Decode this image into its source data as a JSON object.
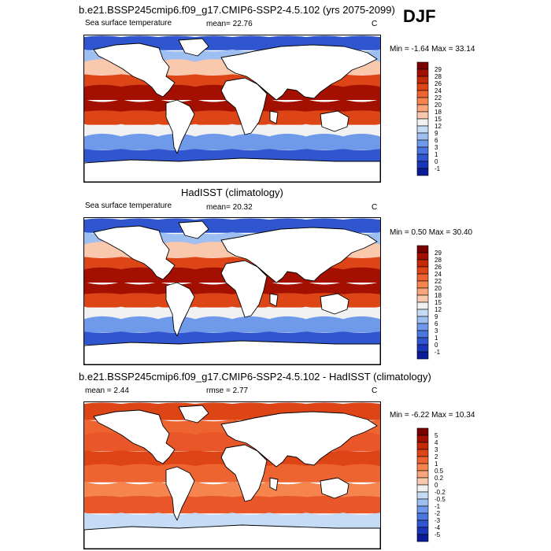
{
  "season": "DJF",
  "panels": [
    {
      "title": "b.e21.BSSP245cmip6.f09_g17.CMIP6-SSP2-4.5.102 (yrs 2075-2099)",
      "left_label": "Sea surface temperature",
      "stat_label": "mean=",
      "stat_value": "22.76",
      "unit": "C",
      "minmax": "Min =  -1.64 Max =  33.14",
      "colorbar_labels": [
        "29",
        "28",
        "26",
        "24",
        "22",
        "20",
        "18",
        "15",
        "12",
        "9",
        "6",
        "3",
        "1",
        "0",
        "-1"
      ],
      "colorbar_colors": [
        "#7a0000",
        "#a31000",
        "#c42a05",
        "#de4516",
        "#ee6430",
        "#f5844f",
        "#f8a57a",
        "#fac8ad",
        "#f1f1f1",
        "#c6dbf6",
        "#9dbff2",
        "#6e9ae9",
        "#4a76df",
        "#2f55cf",
        "#1a37b8",
        "#0a1c96"
      ]
    },
    {
      "title": "HadISST (climatology)",
      "left_label": "Sea surface temperature",
      "stat_label": "mean=",
      "stat_value": "20.32",
      "unit": "C",
      "minmax": "Min =   0.50 Max =  30.40",
      "colorbar_labels": [
        "29",
        "28",
        "26",
        "24",
        "22",
        "20",
        "18",
        "15",
        "12",
        "9",
        "6",
        "3",
        "1",
        "0",
        "-1"
      ],
      "colorbar_colors": [
        "#7a0000",
        "#a31000",
        "#c42a05",
        "#de4516",
        "#ee6430",
        "#f5844f",
        "#f8a57a",
        "#fac8ad",
        "#f1f1f1",
        "#c6dbf6",
        "#9dbff2",
        "#6e9ae9",
        "#4a76df",
        "#2f55cf",
        "#1a37b8",
        "#0a1c96"
      ]
    },
    {
      "title": "b.e21.BSSP245cmip6.f09_g17.CMIP6-SSP2-4.5.102 - HadISST (climatology)",
      "left_label": "mean =   2.44",
      "stat_label": "rmse =",
      "stat_value": "2.77",
      "unit": "C",
      "minmax": "Min =  -6.22 Max =  10.34",
      "colorbar_labels": [
        "5",
        "4",
        "3",
        "2",
        "1",
        "0.5",
        "0.2",
        "0",
        "-0.2",
        "-0.5",
        "-1",
        "-2",
        "-3",
        "-4",
        "-5"
      ],
      "colorbar_colors": [
        "#7a0000",
        "#a31000",
        "#c42a05",
        "#de4516",
        "#ee6430",
        "#f5844f",
        "#f8a57a",
        "#fac8ad",
        "#f1f1f1",
        "#c6dbf6",
        "#9dbff2",
        "#6e9ae9",
        "#4a76df",
        "#2f55cf",
        "#1a37b8",
        "#0a1c96"
      ]
    }
  ],
  "colors": {
    "land": "#ffffff",
    "coast": "#000000",
    "warm": "#b81a00",
    "cool": "#2f5fd8"
  }
}
